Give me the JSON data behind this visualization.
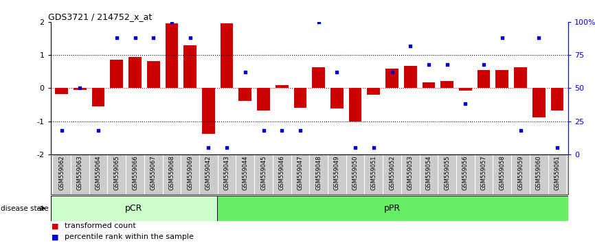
{
  "title": "GDS3721 / 214752_x_at",
  "samples": [
    "GSM559062",
    "GSM559063",
    "GSM559064",
    "GSM559065",
    "GSM559066",
    "GSM559067",
    "GSM559068",
    "GSM559069",
    "GSM559042",
    "GSM559043",
    "GSM559044",
    "GSM559045",
    "GSM559046",
    "GSM559047",
    "GSM559048",
    "GSM559049",
    "GSM559050",
    "GSM559051",
    "GSM559052",
    "GSM559053",
    "GSM559054",
    "GSM559055",
    "GSM559056",
    "GSM559057",
    "GSM559058",
    "GSM559059",
    "GSM559060",
    "GSM559061"
  ],
  "bar_values": [
    -0.18,
    -0.05,
    -0.55,
    0.85,
    0.93,
    0.82,
    1.95,
    1.3,
    -1.38,
    1.95,
    -0.38,
    -0.68,
    0.1,
    -0.6,
    0.62,
    -0.62,
    -1.0,
    -0.2,
    0.58,
    0.68,
    0.18,
    0.22,
    -0.08,
    0.55,
    0.55,
    0.62,
    -0.88,
    -0.68
  ],
  "percentile_values": [
    18,
    50,
    18,
    88,
    88,
    88,
    100,
    88,
    5,
    5,
    62,
    18,
    18,
    18,
    100,
    62,
    5,
    5,
    62,
    82,
    68,
    68,
    38,
    68,
    88,
    18,
    88,
    5
  ],
  "pCR_count": 9,
  "pPR_count": 19,
  "bar_color": "#cc0000",
  "dot_color": "#0000cc",
  "ylim": [
    -2,
    2
  ],
  "y2lim": [
    0,
    100
  ],
  "yticks": [
    -2,
    -1,
    0,
    1,
    2
  ],
  "y2ticks": [
    0,
    25,
    50,
    75,
    100
  ],
  "hlines": [
    -1.0,
    0.0,
    1.0
  ],
  "background_color": "#ffffff",
  "label_bar": "transformed count",
  "label_dot": "percentile rank within the sample",
  "pCR_color": "#ccffcc",
  "pPR_color": "#66ee66",
  "disease_state_label": "disease state",
  "pCR_label": "pCR",
  "pPR_label": "pPR",
  "cell_color": "#cccccc",
  "cell_border_color": "#ffffff"
}
